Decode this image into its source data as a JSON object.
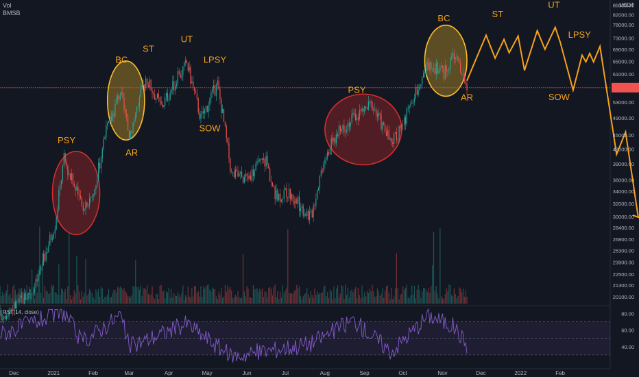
{
  "header": {
    "vol_label": "Vol",
    "symbol": "BMSB"
  },
  "price_axis": {
    "currency": "USDT",
    "ticks": [
      "86000.00",
      "82000.00",
      "78000.00",
      "73000.00",
      "69000.00",
      "65000.00",
      "61000.00",
      "57000.00",
      "53000.00",
      "49000.00",
      "45000.00",
      "42000.00",
      "39000.00",
      "36000.00",
      "34000.00",
      "32000.00",
      "30000.00",
      "28400.00",
      "26800.00",
      "25300.00",
      "23900.00",
      "22500.00",
      "21300.00",
      "20100.00"
    ],
    "log_scale": true,
    "range": [
      19500,
      87000
    ]
  },
  "time_axis": {
    "labels": [
      "Dec",
      "2021",
      "Feb",
      "Mar",
      "Apr",
      "May",
      "Jun",
      "Jul",
      "Aug",
      "Sep",
      "Oct",
      "Nov",
      "Dec",
      "2022",
      "Feb"
    ],
    "range": [
      "2020-11-19",
      "2022-03-11"
    ]
  },
  "rsi": {
    "label": "RSI (14, close)",
    "ticks": [
      "80.00",
      "60.00",
      "40.00"
    ],
    "range": [
      20,
      86
    ],
    "overbought": 70,
    "oversold": 30
  },
  "colors": {
    "background": "#131722",
    "up": "#26a69a",
    "down": "#ef5350",
    "annotation": "#f7a21b",
    "rsi_line": "#7e57c2",
    "red_zone": "#d32f2f",
    "yellow_zone": "#fbc02d",
    "axis_text": "#b2b5be",
    "price_marker": "#f05350"
  },
  "annotations": {
    "labels": [
      {
        "text": "PSY",
        "date": "2021-01-10",
        "price": 43200
      },
      {
        "text": "BC",
        "date": "2021-02-22",
        "price": 64500
      },
      {
        "text": "AR",
        "date": "2021-03-02",
        "price": 40600
      },
      {
        "text": "ST",
        "date": "2021-03-15",
        "price": 68200
      },
      {
        "text": "UT",
        "date": "2021-04-14",
        "price": 71500
      },
      {
        "text": "LPSY",
        "date": "2021-05-06",
        "price": 64500
      },
      {
        "text": "SOW",
        "date": "2021-05-02",
        "price": 45900
      },
      {
        "text": "PSY",
        "date": "2021-08-25",
        "price": 55500
      },
      {
        "text": "BC",
        "date": "2021-11-01",
        "price": 79400
      },
      {
        "text": "AR",
        "date": "2021-11-19",
        "price": 53500
      },
      {
        "text": "ST",
        "date": "2021-12-13",
        "price": 81000
      },
      {
        "text": "UT",
        "date": "2022-01-26",
        "price": 84800
      },
      {
        "text": "SOW",
        "date": "2022-01-30",
        "price": 53600
      },
      {
        "text": "LPSY",
        "date": "2022-02-15",
        "price": 73100
      }
    ],
    "zones": [
      {
        "type": "red",
        "from": "2020-12-30",
        "to": "2021-02-05",
        "low": 27400,
        "high": 41500
      },
      {
        "type": "yellow",
        "from": "2021-02-11",
        "to": "2021-03-12",
        "low": 43900,
        "high": 65100
      },
      {
        "type": "red",
        "from": "2021-07-31",
        "to": "2021-09-29",
        "low": 38800,
        "high": 55200
      },
      {
        "type": "yellow",
        "from": "2021-10-17",
        "to": "2021-11-19",
        "low": 54600,
        "high": 77800
      }
    ],
    "projection": [
      [
        "2021-11-19",
        59000
      ],
      [
        "2021-12-04",
        74000
      ],
      [
        "2021-12-11",
        66000
      ],
      [
        "2021-12-18",
        72500
      ],
      [
        "2021-12-22",
        67800
      ],
      [
        "2021-12-29",
        73700
      ],
      [
        "2022-01-03",
        62100
      ],
      [
        "2022-01-13",
        75700
      ],
      [
        "2022-01-19",
        69000
      ],
      [
        "2022-01-27",
        77000
      ],
      [
        "2022-01-31",
        71400
      ],
      [
        "2022-02-10",
        56300
      ],
      [
        "2022-02-17",
        67000
      ],
      [
        "2022-02-20",
        64800
      ],
      [
        "2022-02-23",
        67600
      ],
      [
        "2022-02-26",
        64800
      ],
      [
        "2022-03-03",
        70000
      ],
      [
        "2022-03-16",
        40900
      ],
      [
        "2022-03-23",
        45700
      ],
      [
        "2022-04-02",
        29800
      ]
    ],
    "projection_arrowhead": {
      "date": "2022-04-03",
      "price": 29800
    }
  },
  "chart_data": {
    "type": "candlestick",
    "title": "",
    "series": [
      {
        "name": "Price",
        "dates": [
          "2020-11-19",
          "2020-12-01",
          "2020-12-16",
          "2021-01-01",
          "2021-01-08",
          "2021-01-22",
          "2021-02-01",
          "2021-02-08",
          "2021-02-21",
          "2021-02-28",
          "2021-03-13",
          "2021-03-25",
          "2021-04-14",
          "2021-04-25",
          "2021-05-08",
          "2021-05-12",
          "2021-05-19",
          "2021-05-31",
          "2021-06-15",
          "2021-06-22",
          "2021-07-01",
          "2021-07-20",
          "2021-07-31",
          "2021-08-14",
          "2021-08-22",
          "2021-09-06",
          "2021-09-21",
          "2021-10-01",
          "2021-10-15",
          "2021-10-20",
          "2021-11-01",
          "2021-11-09",
          "2021-11-19"
        ],
        "close": [
          18300,
          19300,
          21000,
          29000,
          40000,
          31500,
          34000,
          44000,
          56000,
          45000,
          60000,
          52000,
          64500,
          49000,
          58000,
          50000,
          37000,
          36500,
          40000,
          33000,
          34000,
          30000,
          41000,
          47000,
          49000,
          52500,
          43000,
          48000,
          61000,
          64000,
          61000,
          67500,
          57000
        ]
      },
      {
        "name": "RSI",
        "dates": [
          "2020-11-19",
          "2020-12-16",
          "2021-01-08",
          "2021-01-22",
          "2021-02-21",
          "2021-02-28",
          "2021-04-14",
          "2021-05-19",
          "2021-07-20",
          "2021-08-22",
          "2021-09-21",
          "2021-10-20",
          "2021-11-09",
          "2021-11-19"
        ],
        "values": [
          55,
          70,
          82,
          45,
          78,
          40,
          68,
          28,
          44,
          72,
          34,
          78,
          64,
          42
        ]
      }
    ],
    "volume_note": "daily volume histogram",
    "ylim": [
      19500,
      87000
    ]
  }
}
